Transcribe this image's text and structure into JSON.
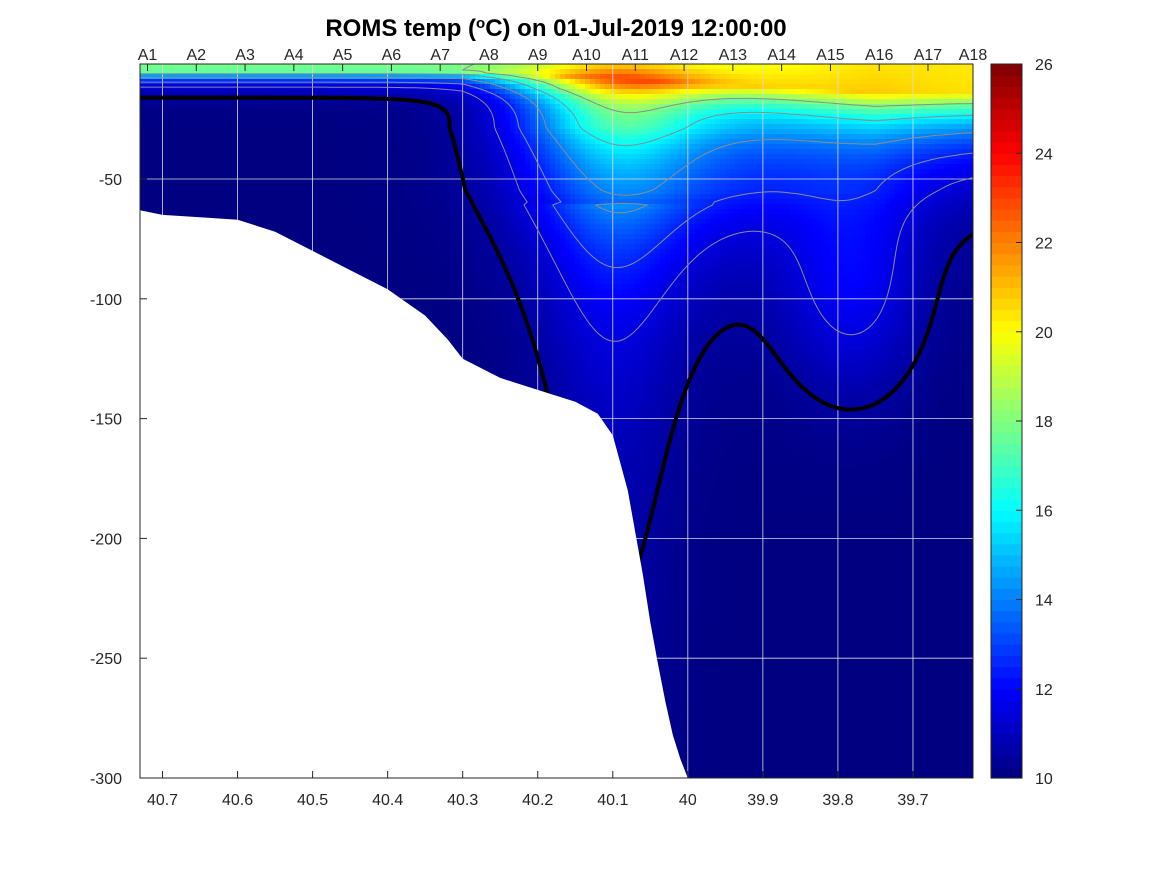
{
  "chart_data": {
    "type": "heatmap",
    "title": "ROMS temp (°C) on 01-Jul-2019 12:00:00",
    "title_parts": {
      "before": "ROMS temp (",
      "superscript": "o",
      "after": "C) on 01-Jul-2019 12:00:00"
    },
    "x": {
      "xlim": [
        39.62,
        40.73
      ],
      "reversed": true,
      "ticks": [
        40.7,
        40.6,
        40.5,
        40.4,
        40.3,
        40.2,
        40.1,
        40,
        39.9,
        39.8,
        39.7
      ],
      "tick_labels": [
        "40.7",
        "40.6",
        "40.5",
        "40.4",
        "40.3",
        "40.2",
        "40.1",
        "40",
        "39.9",
        "39.8",
        "39.7"
      ]
    },
    "y": {
      "ylim": [
        -300,
        -2
      ],
      "ticks": [
        -300,
        -250,
        -200,
        -150,
        -100,
        -50
      ],
      "tick_labels": [
        "-300",
        "-250",
        "-200",
        "-150",
        "-100",
        "-50"
      ]
    },
    "stations": {
      "labels": [
        "A1",
        "A2",
        "A3",
        "A4",
        "A5",
        "A6",
        "A7",
        "A8",
        "A9",
        "A10",
        "A11",
        "A12",
        "A13",
        "A14",
        "A15",
        "A16",
        "A17",
        "A18"
      ],
      "x": [
        40.72,
        40.655,
        40.59,
        40.525,
        40.46,
        40.395,
        40.33,
        40.265,
        40.2,
        40.135,
        40.07,
        40.005,
        39.94,
        39.875,
        39.81,
        39.745,
        39.68,
        39.62
      ]
    },
    "colorbar": {
      "clim": [
        10,
        26
      ],
      "ticks": [
        10,
        12,
        14,
        16,
        18,
        20,
        22,
        24,
        26
      ],
      "tick_labels": [
        "10",
        "12",
        "14",
        "16",
        "18",
        "20",
        "22",
        "24",
        "26"
      ],
      "colormap": "jet"
    },
    "bottom_profile": {
      "x": [
        40.73,
        40.7,
        40.65,
        40.6,
        40.55,
        40.5,
        40.45,
        40.4,
        40.35,
        40.32,
        40.3,
        40.25,
        40.2,
        40.15,
        40.12,
        40.1,
        40.08,
        40.06,
        40.05,
        40.04,
        40.03,
        40.02,
        40.01,
        40.0
      ],
      "depth": [
        -63,
        -65,
        -66,
        -67,
        -72,
        -80,
        -88,
        -96,
        -107,
        -117,
        -125,
        -133,
        -138,
        -143,
        -148,
        -157,
        -180,
        -215,
        -235,
        -252,
        -268,
        -282,
        -292,
        -300
      ]
    },
    "isotherm_bold_c": 10,
    "grid": true,
    "grid_color": "#dcdcdc",
    "colors": {
      "land": "#ffffff",
      "bold_contour": "#000000",
      "thin_contour": "#8c8c8c"
    }
  }
}
